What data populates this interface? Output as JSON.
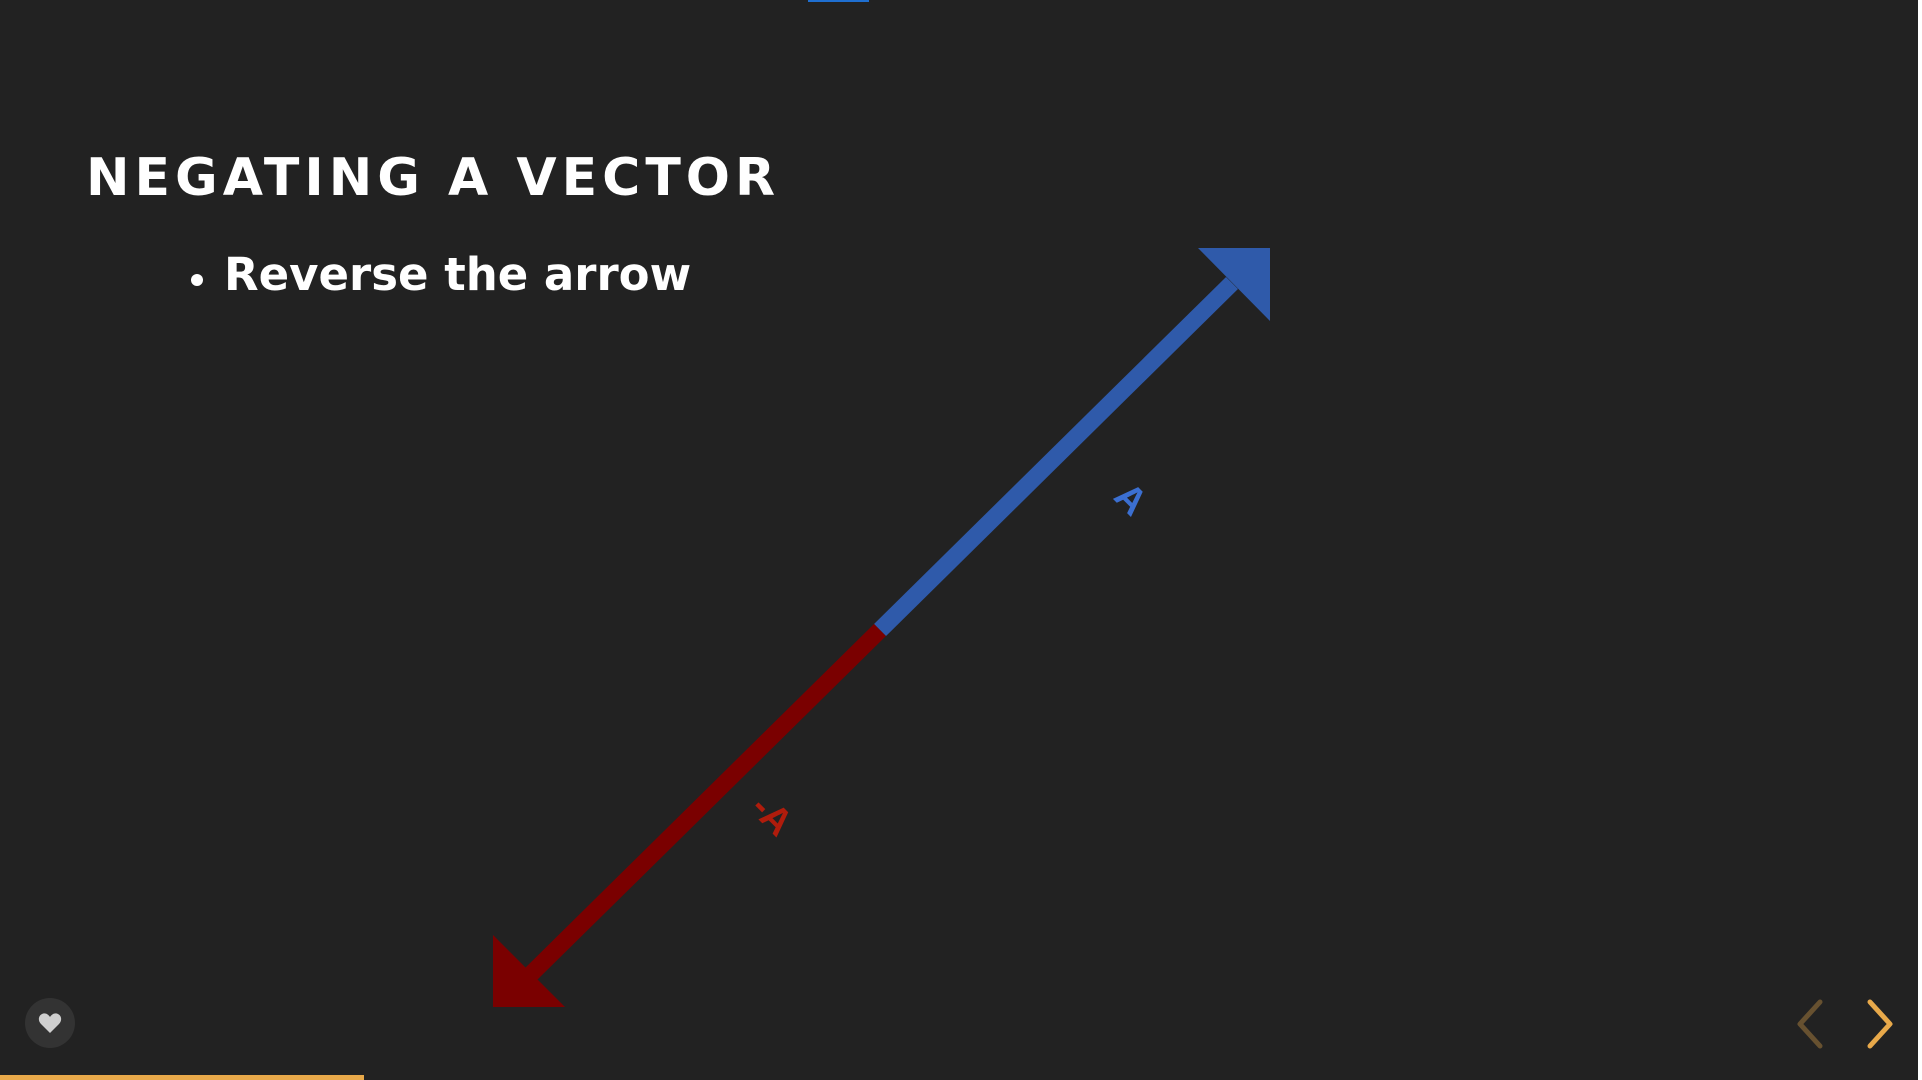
{
  "slide": {
    "title": "NEGATING A VECTOR",
    "bullets": [
      "Reverse the arrow"
    ],
    "background_color": "#222222",
    "text_color": "#ffffff"
  },
  "diagram": {
    "vector_a": {
      "label": "A",
      "color": "#2f5aaa",
      "label_color": "#3b6fd1"
    },
    "vector_neg_a": {
      "label": "-A",
      "color": "#7a0000",
      "label_color": "#b01c0c"
    }
  },
  "controls": {
    "like_icon": "heart-icon",
    "prev_icon": "chevron-left-icon",
    "next_icon": "chevron-right-icon",
    "accent_color": "#e8a94a"
  },
  "progress": {
    "fraction": 0.19,
    "color": "#e8a94a"
  },
  "top_indicator_color": "#1f6fd0"
}
